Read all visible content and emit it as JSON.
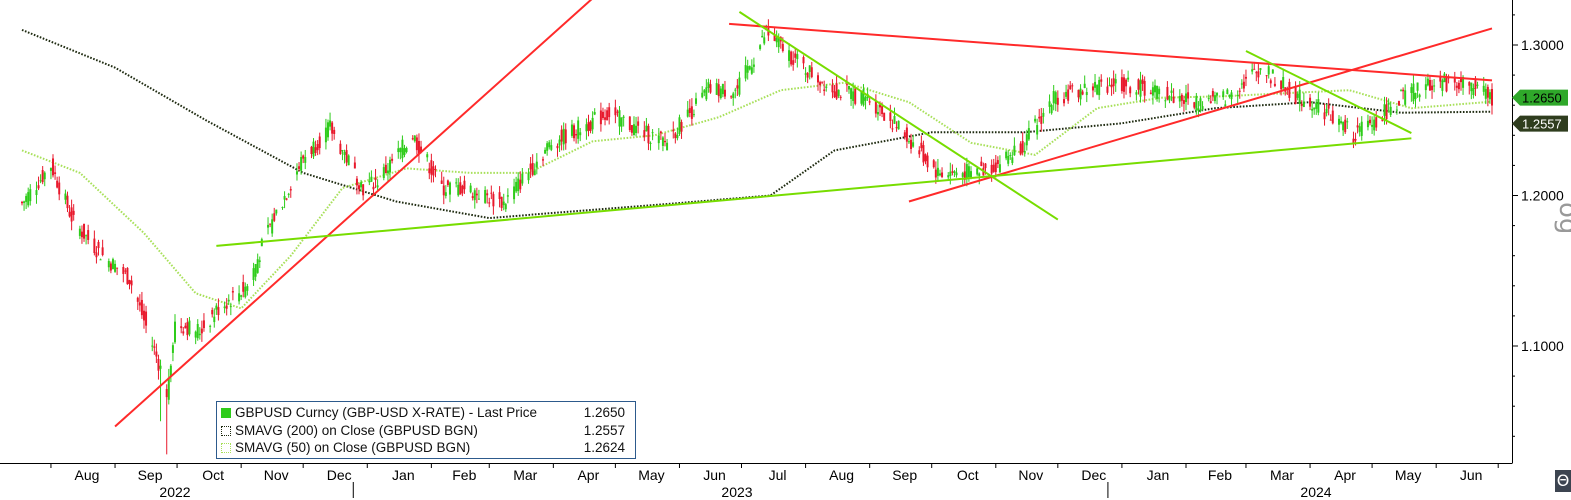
{
  "chart_data": {
    "type": "line",
    "title": "",
    "xlabel": "",
    "ylabel": "",
    "ylim": [
      1.02,
      1.33
    ],
    "y_ticks": [
      "1.3000",
      "1.2000",
      "1.1000"
    ],
    "y_tick_values": [
      1.3,
      1.2,
      1.1
    ],
    "months": [
      "Aug",
      "Sep",
      "Oct",
      "Nov",
      "Dec",
      "Jan",
      "Feb",
      "Mar",
      "Apr",
      "May",
      "Jun",
      "Jul",
      "Aug",
      "Sep",
      "Oct",
      "Nov",
      "Dec",
      "Jan",
      "Feb",
      "Mar",
      "Apr",
      "May",
      "Jun"
    ],
    "years": [
      "2022",
      "2023",
      "2024"
    ],
    "x_start": "2022-07-18",
    "x_end": "2024-06-28",
    "series": [
      {
        "name": "GBPUSD Curncy (GBP-USD X-RATE) - Last Price",
        "style": "candles",
        "last": "1.2650",
        "x": [
          "2022-07-18",
          "2022-08-01",
          "2022-08-12",
          "2022-08-26",
          "2022-09-08",
          "2022-09-23",
          "2022-09-26",
          "2022-09-30",
          "2022-10-12",
          "2022-10-21",
          "2022-11-04",
          "2022-11-15",
          "2022-12-01",
          "2022-12-14",
          "2022-12-30",
          "2023-01-06",
          "2023-01-23",
          "2023-02-06",
          "2023-02-17",
          "2023-03-08",
          "2023-03-31",
          "2023-04-14",
          "2023-04-28",
          "2023-05-10",
          "2023-05-25",
          "2023-06-15",
          "2023-06-29",
          "2023-07-13",
          "2023-07-31",
          "2023-08-15",
          "2023-08-31",
          "2023-09-15",
          "2023-10-04",
          "2023-10-20",
          "2023-11-01",
          "2023-11-15",
          "2023-11-29",
          "2023-12-13",
          "2023-12-28",
          "2024-01-15",
          "2024-02-05",
          "2024-02-20",
          "2024-03-08",
          "2024-03-26",
          "2024-04-05",
          "2024-04-22",
          "2024-05-03",
          "2024-05-15",
          "2024-05-31",
          "2024-06-14",
          "2024-06-28"
        ],
        "values": [
          1.195,
          1.22,
          1.182,
          1.16,
          1.145,
          1.085,
          1.07,
          1.115,
          1.11,
          1.125,
          1.14,
          1.18,
          1.225,
          1.245,
          1.205,
          1.21,
          1.24,
          1.205,
          1.205,
          1.195,
          1.235,
          1.245,
          1.255,
          1.245,
          1.235,
          1.27,
          1.27,
          1.308,
          1.285,
          1.27,
          1.265,
          1.245,
          1.215,
          1.215,
          1.22,
          1.235,
          1.265,
          1.27,
          1.275,
          1.27,
          1.262,
          1.265,
          1.285,
          1.265,
          1.26,
          1.24,
          1.25,
          1.265,
          1.275,
          1.275,
          1.265
        ]
      },
      {
        "name": "SMAVG (200) on Close (GBPUSD BGN)",
        "style": "dotted",
        "last": "1.2557",
        "x": [
          "2022-07-18",
          "2022-09-01",
          "2022-10-15",
          "2022-12-01",
          "2023-01-15",
          "2023-03-01",
          "2023-04-15",
          "2023-06-01",
          "2023-07-15",
          "2023-08-15",
          "2023-10-01",
          "2023-11-15",
          "2024-01-01",
          "2024-02-15",
          "2024-04-01",
          "2024-05-15",
          "2024-06-28"
        ],
        "values": [
          1.31,
          1.285,
          1.25,
          1.215,
          1.196,
          1.185,
          1.19,
          1.195,
          1.2,
          1.23,
          1.242,
          1.242,
          1.248,
          1.258,
          1.262,
          1.255,
          1.2557
        ]
      },
      {
        "name": "SMAVG (50) on Close (GBPUSD BGN)",
        "style": "dotted",
        "last": "1.2624",
        "x": [
          "2022-07-18",
          "2022-08-15",
          "2022-09-15",
          "2022-10-10",
          "2022-11-01",
          "2022-11-25",
          "2022-12-20",
          "2023-01-20",
          "2023-02-20",
          "2023-03-20",
          "2023-04-20",
          "2023-05-20",
          "2023-06-20",
          "2023-07-20",
          "2023-08-20",
          "2023-09-20",
          "2023-10-20",
          "2023-11-20",
          "2023-12-20",
          "2024-01-20",
          "2024-02-20",
          "2024-03-20",
          "2024-04-20",
          "2024-05-20",
          "2024-06-28"
        ],
        "values": [
          1.23,
          1.215,
          1.175,
          1.135,
          1.125,
          1.16,
          1.205,
          1.218,
          1.215,
          1.215,
          1.236,
          1.24,
          1.252,
          1.27,
          1.275,
          1.262,
          1.235,
          1.227,
          1.258,
          1.265,
          1.266,
          1.268,
          1.27,
          1.258,
          1.2624
        ]
      }
    ],
    "trendlines": [
      {
        "color": "#ff2a2a",
        "x": [
          "2022-09-01",
          "2023-06-15"
        ],
        "y": [
          1.0465,
          1.4
        ]
      },
      {
        "color": "#ff2a2a",
        "x": [
          "2023-06-25",
          "2024-06-28"
        ],
        "y": [
          1.314,
          1.2765
        ]
      },
      {
        "color": "#ff2a2a",
        "x": [
          "2023-09-20",
          "2024-06-28"
        ],
        "y": [
          1.196,
          1.311
        ]
      },
      {
        "color": "#77dd00",
        "x": [
          "2022-10-20",
          "2024-05-20"
        ],
        "y": [
          1.1665,
          1.238
        ]
      },
      {
        "color": "#77dd00",
        "x": [
          "2023-06-30",
          "2023-12-01"
        ],
        "y": [
          1.322,
          1.184
        ]
      },
      {
        "color": "#77dd00",
        "x": [
          "2024-03-01",
          "2024-05-20"
        ],
        "y": [
          1.296,
          1.2415
        ]
      }
    ],
    "colors": {
      "candle_up": "#2ecc1a",
      "candle_down": "#e8192c",
      "sma200": "#1e2a10",
      "sma50": "#a8e05a",
      "trend_red": "#ff2a2a",
      "trend_green": "#77dd00",
      "tag_last": "#2fa82a",
      "tag_sma200": "#2f3d1e",
      "tag_sma50": "#c5ef7a"
    },
    "legend": {
      "placement": "bottom-left",
      "entries": [
        {
          "label": "GBPUSD Curncy (GBP-USD X-RATE) - Last Price",
          "value": "1.2650"
        },
        {
          "label": "SMAVG (200)  on Close (GBPUSD BGN)",
          "value": "1.2557"
        },
        {
          "label": "SMAVG (50)  on Close (GBPUSD BGN)",
          "value": "1.2624"
        }
      ]
    },
    "side_marks": [
      "og",
      "Θ"
    ]
  }
}
